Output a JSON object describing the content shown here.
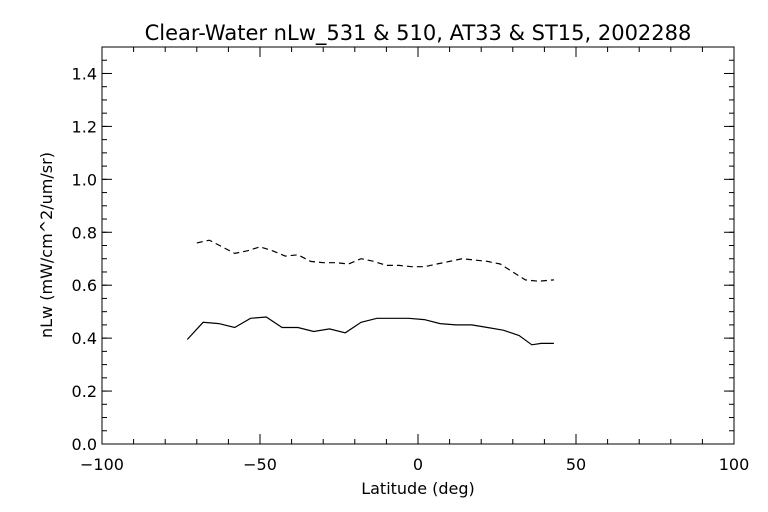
{
  "chart_data": {
    "type": "line",
    "title": "Clear-Water nLw_531 & 510, AT33 & ST15, 2002288",
    "xlabel": "Latitude (deg)",
    "ylabel": "nLw (mW/cm^2/um/sr)",
    "xlim": [
      -100,
      100
    ],
    "ylim": [
      0.0,
      1.5
    ],
    "x_ticks": [
      -100,
      -50,
      0,
      50,
      100
    ],
    "x_tick_labels": [
      "−100",
      "−50",
      "0",
      "50",
      "100"
    ],
    "y_ticks": [
      0.0,
      0.2,
      0.4,
      0.6,
      0.8,
      1.0,
      1.2,
      1.4
    ],
    "y_tick_labels": [
      "0.0",
      "0.2",
      "0.4",
      "0.6",
      "0.8",
      "1.0",
      "1.2",
      "1.4"
    ],
    "x_minor_step": 10,
    "y_minor_step": 0.05,
    "grid": false,
    "legend": "none",
    "series": [
      {
        "style": "dashed",
        "color": "#000000",
        "x": [
          -70,
          -66,
          -62,
          -58,
          -54,
          -50,
          -46,
          -42,
          -38,
          -34,
          -30,
          -26,
          -22,
          -18,
          -14,
          -10,
          -6,
          -2,
          2,
          6,
          10,
          14,
          18,
          22,
          26,
          30,
          34,
          38,
          43
        ],
        "y": [
          0.76,
          0.77,
          0.745,
          0.72,
          0.73,
          0.745,
          0.73,
          0.71,
          0.715,
          0.69,
          0.685,
          0.685,
          0.68,
          0.7,
          0.69,
          0.675,
          0.675,
          0.67,
          0.67,
          0.68,
          0.69,
          0.7,
          0.695,
          0.69,
          0.68,
          0.65,
          0.62,
          0.615,
          0.62
        ]
      },
      {
        "style": "solid",
        "color": "#000000",
        "x": [
          -73,
          -68,
          -63,
          -58,
          -53,
          -48,
          -43,
          -38,
          -33,
          -28,
          -23,
          -18,
          -13,
          -8,
          -3,
          2,
          7,
          12,
          17,
          22,
          27,
          32,
          36,
          39,
          43
        ],
        "y": [
          0.395,
          0.46,
          0.455,
          0.44,
          0.475,
          0.48,
          0.44,
          0.44,
          0.425,
          0.435,
          0.42,
          0.46,
          0.475,
          0.475,
          0.475,
          0.47,
          0.455,
          0.45,
          0.45,
          0.44,
          0.43,
          0.41,
          0.375,
          0.38,
          0.38
        ]
      }
    ]
  }
}
